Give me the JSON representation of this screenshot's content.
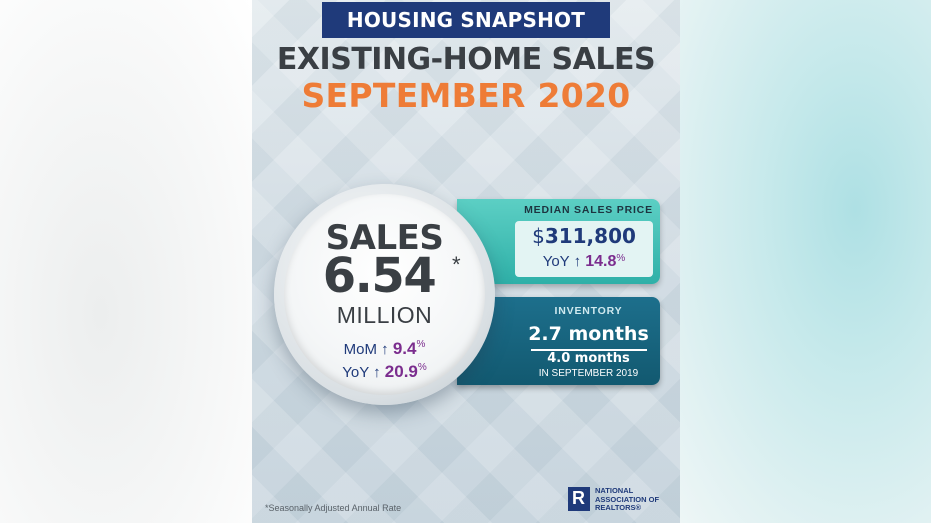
{
  "banner": "HOUSING SNAPSHOT",
  "headline": "EXISTING-HOME SALES",
  "subhead": "SEPTEMBER 2020",
  "sales": {
    "label": "SALES",
    "value": "6.54",
    "asterisk": "*",
    "unit": "MILLION",
    "mom_label": "MoM",
    "mom_value": "9.4",
    "yoy_label": "YoY",
    "yoy_value": "20.9",
    "percent": "%",
    "arrow": "↑"
  },
  "median_price": {
    "label": "MEDIAN SALES PRICE",
    "dollar": "$",
    "value": "311,800",
    "yoy_label": "YoY",
    "yoy_value": "14.8",
    "percent": "%",
    "arrow": "↑"
  },
  "inventory": {
    "label": "INVENTORY",
    "current": "2.7 months",
    "previous": "4.0 months",
    "previous_label": "IN SEPTEMBER 2019"
  },
  "footnote": "*Seasonally Adjusted Annual Rate",
  "logo": {
    "line1": "NATIONAL",
    "line2": "ASSOCIATION OF",
    "line3": "REALTORS®"
  },
  "colors": {
    "navy": "#1f3a7a",
    "orange": "#ee7c37",
    "purple": "#7b2d8e",
    "teal": "#2fb0a8",
    "dark_teal": "#125970"
  }
}
